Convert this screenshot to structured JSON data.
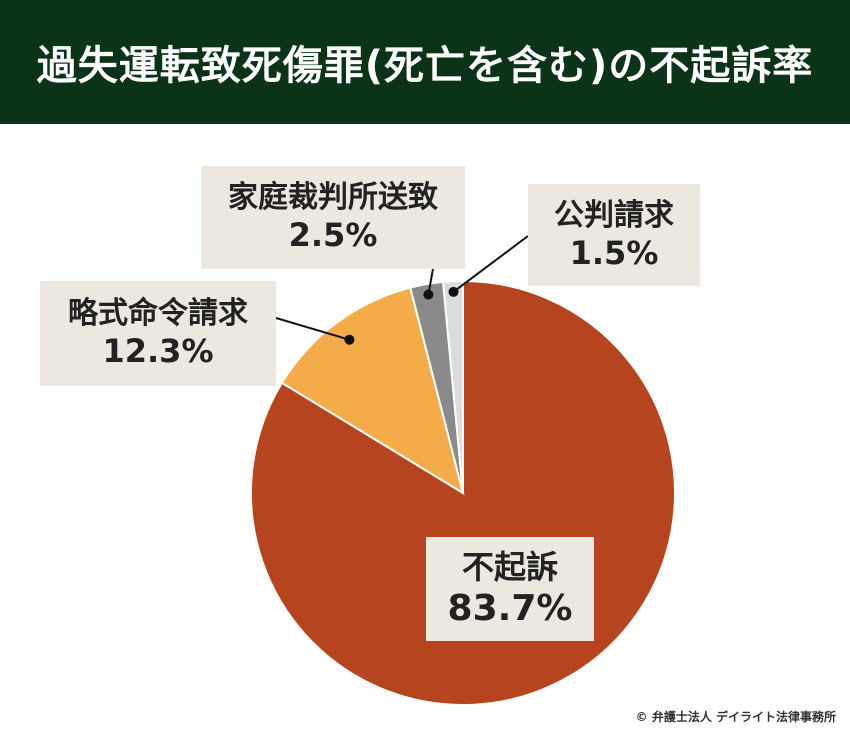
{
  "title": "過失運転致死傷罪(死亡を含む)の不起訴率",
  "credit": "© 弁護士法人 デイライト法律事務所",
  "chart_data": {
    "type": "pie",
    "title": "過失運転致死傷罪(死亡を含む)の不起訴率",
    "unit": "%",
    "legend": "none",
    "slices": [
      {
        "label": "不起訴",
        "value": 83.7,
        "display": "83.7%",
        "color": "#b5441f"
      },
      {
        "label": "略式命令請求",
        "value": 12.3,
        "display": "12.3%",
        "color": "#f4ac4a"
      },
      {
        "label": "家庭裁判所送致",
        "value": 2.5,
        "display": "2.5%",
        "color": "#8a8a8a"
      },
      {
        "label": "公判請求",
        "value": 1.5,
        "display": "1.5%",
        "color": "#dcdcdc"
      }
    ]
  }
}
